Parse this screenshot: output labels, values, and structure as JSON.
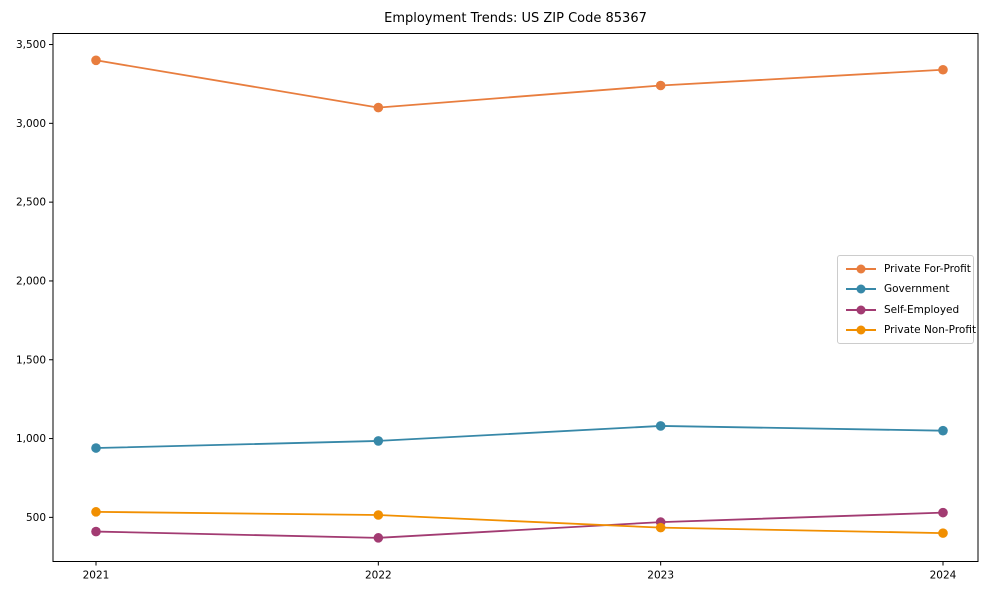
{
  "chart_data": {
    "type": "line",
    "title": "Employment Trends: US ZIP Code 85367",
    "categories": [
      "2021",
      "2022",
      "2023",
      "2024"
    ],
    "series": [
      {
        "name": "Private For-Profit",
        "color": "#E87D3E",
        "values": [
          3400,
          3100,
          3240,
          3340
        ]
      },
      {
        "name": "Government",
        "color": "#3788A8",
        "values": [
          940,
          985,
          1080,
          1050
        ]
      },
      {
        "name": "Self-Employed",
        "color": "#A23B72",
        "values": [
          410,
          370,
          470,
          530
        ]
      },
      {
        "name": "Private Non-Profit",
        "color": "#F18F01",
        "values": [
          535,
          515,
          435,
          400
        ]
      }
    ],
    "y_ticks": [
      500,
      1000,
      1500,
      2000,
      2500,
      3000,
      3500
    ],
    "y_tick_labels": [
      "500",
      "1,000",
      "1,500",
      "2,000",
      "2,500",
      "3,000",
      "3,500"
    ],
    "xlabel": "",
    "ylabel": "",
    "ylim": [
      220,
      3570
    ],
    "grid": false,
    "legend_position": "center-right",
    "plot_border_color": "#000000",
    "background_color": "#ffffff"
  }
}
